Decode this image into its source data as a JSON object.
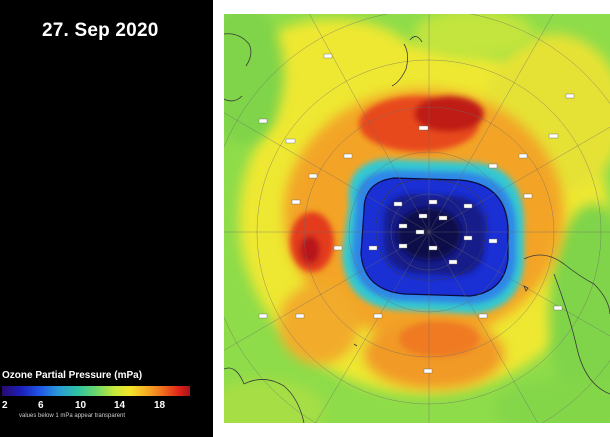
{
  "header": {
    "date": "27. Sep 2020"
  },
  "legend": {
    "title": "Ozone Partial Pressure (mPa)",
    "ticks": [
      "2",
      "6",
      "10",
      "14",
      "18"
    ],
    "note": "values below 1 mPa appear transparent",
    "min_value": 1,
    "max_value": 20
  },
  "map": {
    "projection": "south-polar-stereographic",
    "center_pressure_mpa": 2,
    "colors": {
      "ozone_hole_core": "#0a0a5a",
      "ozone_hole": "#1a2fd4",
      "ring_blue": "#2f7fe8",
      "ring_cyan": "#35d0d0",
      "green": "#7ed84a",
      "yellow": "#f0e62a",
      "orange": "#f5a025",
      "red": "#e03a1a",
      "dark_red": "#8a1010"
    }
  }
}
